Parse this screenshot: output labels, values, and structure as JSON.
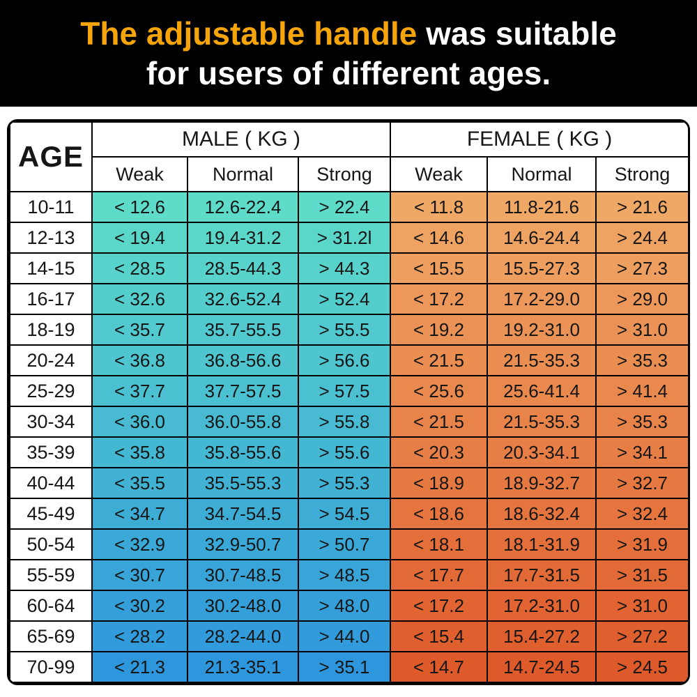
{
  "banner": {
    "highlight": "The adjustable handle",
    "rest_line1": " was suitable",
    "line2": "for users of different ages.",
    "highlight_color": "#F5A40A",
    "background": "#000000",
    "text_color": "#ffffff"
  },
  "colors": {
    "male_top": "#5EDCC9",
    "male_bottom": "#2E96DC",
    "female_top": "#F0A866",
    "female_bottom": "#DF5A2A",
    "border": "#000000",
    "header_bg": "#ffffff",
    "text": "#161616"
  },
  "chart_data": {
    "type": "table",
    "title": "The adjustable handle was suitable for users of different ages.",
    "age_header": "AGE",
    "unit": "KG",
    "groups": [
      {
        "label": "MALE ( KG )",
        "columns": [
          "Weak",
          "Normal",
          "Strong"
        ]
      },
      {
        "label": "FEMALE ( KG )",
        "columns": [
          "Weak",
          "Normal",
          "Strong"
        ]
      }
    ],
    "rows": [
      {
        "age": "10-11",
        "male": [
          "< 12.6",
          "12.6-22.4",
          "> 22.4"
        ],
        "female": [
          "< 11.8",
          "11.8-21.6",
          "> 21.6"
        ]
      },
      {
        "age": "12-13",
        "male": [
          "< 19.4",
          "19.4-31.2",
          "> 31.2l"
        ],
        "female": [
          "< 14.6",
          "14.6-24.4",
          "> 24.4"
        ]
      },
      {
        "age": "14-15",
        "male": [
          "< 28.5",
          "28.5-44.3",
          "> 44.3"
        ],
        "female": [
          "< 15.5",
          "15.5-27.3",
          "> 27.3"
        ]
      },
      {
        "age": "16-17",
        "male": [
          "< 32.6",
          "32.6-52.4",
          "> 52.4"
        ],
        "female": [
          "< 17.2",
          "17.2-29.0",
          "> 29.0"
        ]
      },
      {
        "age": "18-19",
        "male": [
          "< 35.7",
          "35.7-55.5",
          "> 55.5"
        ],
        "female": [
          "< 19.2",
          "19.2-31.0",
          "> 31.0"
        ]
      },
      {
        "age": "20-24",
        "male": [
          "< 36.8",
          "36.8-56.6",
          "> 56.6"
        ],
        "female": [
          "< 21.5",
          "21.5-35.3",
          "> 35.3"
        ]
      },
      {
        "age": "25-29",
        "male": [
          "< 37.7",
          "37.7-57.5",
          "> 57.5"
        ],
        "female": [
          "< 25.6",
          "25.6-41.4",
          "> 41.4"
        ]
      },
      {
        "age": "30-34",
        "male": [
          "< 36.0",
          "36.0-55.8",
          "> 55.8"
        ],
        "female": [
          "< 21.5",
          "21.5-35.3",
          "> 35.3"
        ]
      },
      {
        "age": "35-39",
        "male": [
          "< 35.8",
          "35.8-55.6",
          "> 55.6"
        ],
        "female": [
          "< 20.3",
          "20.3-34.1",
          "> 34.1"
        ]
      },
      {
        "age": "40-44",
        "male": [
          "< 35.5",
          "35.5-55.3",
          "> 55.3"
        ],
        "female": [
          "< 18.9",
          "18.9-32.7",
          "> 32.7"
        ]
      },
      {
        "age": "45-49",
        "male": [
          "< 34.7",
          "34.7-54.5",
          "> 54.5"
        ],
        "female": [
          "< 18.6",
          "18.6-32.4",
          "> 32.4"
        ]
      },
      {
        "age": "50-54",
        "male": [
          "< 32.9",
          "32.9-50.7",
          "> 50.7"
        ],
        "female": [
          "< 18.1",
          "18.1-31.9",
          "> 31.9"
        ]
      },
      {
        "age": "55-59",
        "male": [
          "< 30.7",
          "30.7-48.5",
          "> 48.5"
        ],
        "female": [
          "< 17.7",
          "17.7-31.5",
          "> 31.5"
        ]
      },
      {
        "age": "60-64",
        "male": [
          "< 30.2",
          "30.2-48.0",
          "> 48.0"
        ],
        "female": [
          "< 17.2",
          "17.2-31.0",
          "> 31.0"
        ]
      },
      {
        "age": "65-69",
        "male": [
          "< 28.2",
          "28.2-44.0",
          "> 44.0"
        ],
        "female": [
          "< 15.4",
          "15.4-27.2",
          "> 27.2"
        ]
      },
      {
        "age": "70-99",
        "male": [
          "< 21.3",
          "21.3-35.1",
          "> 35.1"
        ],
        "female": [
          "< 14.7",
          "14.7-24.5",
          "> 24.5"
        ]
      }
    ]
  }
}
